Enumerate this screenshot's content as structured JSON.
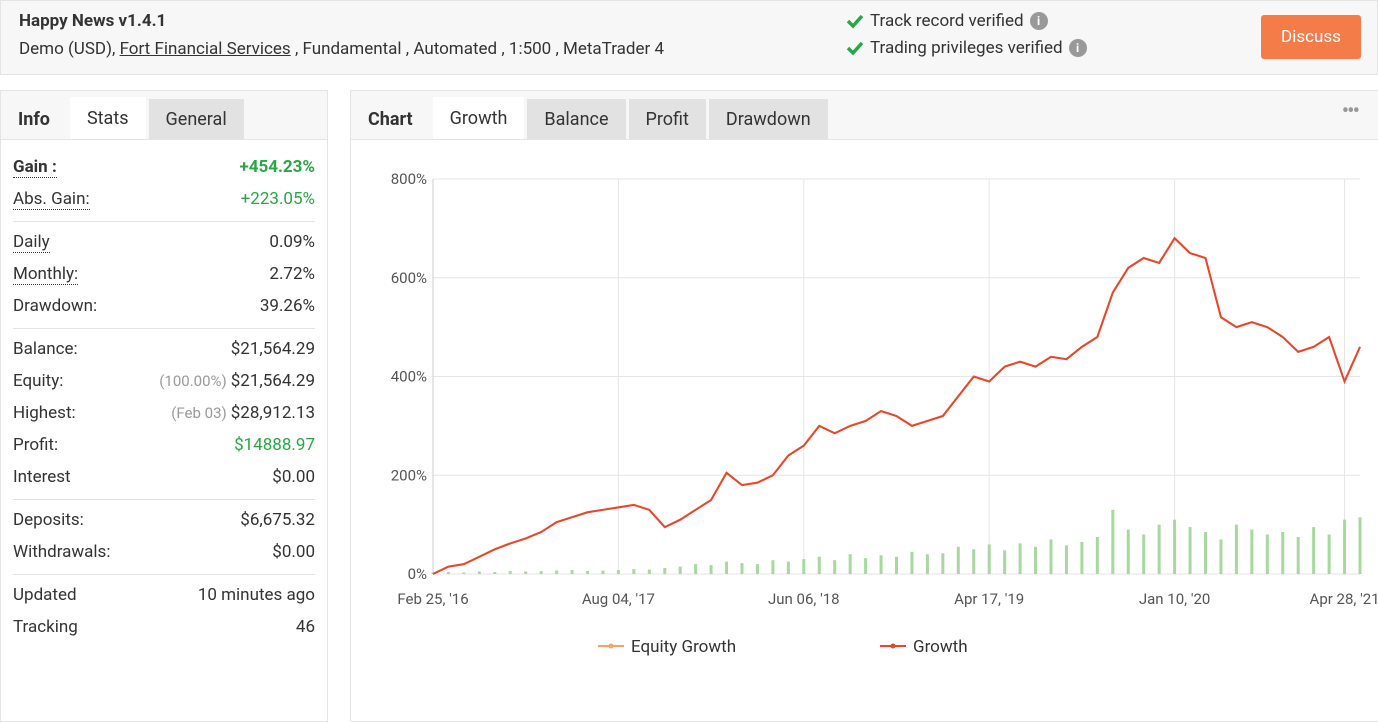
{
  "header": {
    "title": "Happy News v1.4.1",
    "account": "Demo (USD),",
    "broker": "Fort Financial Services",
    "details": ", Fundamental , Automated , 1:500 , MetaTrader 4",
    "verifications": [
      "Track record verified",
      "Trading privileges verified"
    ],
    "button": "Discuss"
  },
  "left_tabs": [
    "Info",
    "Stats",
    "General"
  ],
  "stats": [
    [
      {
        "label": "Gain :",
        "value": "+454.23%"
      },
      {
        "label": "Abs. Gain:",
        "value": "+223.05%"
      }
    ],
    [
      {
        "label": "Daily",
        "value": "0.09%"
      },
      {
        "label": "Monthly:",
        "value": "2.72%"
      },
      {
        "label": "Drawdown:",
        "value": "39.26%"
      }
    ],
    [
      {
        "label": "Balance:",
        "value": "$21,564.29"
      },
      {
        "label": "Equity:",
        "note": "(100.00%)",
        "value": "$21,564.29"
      },
      {
        "label": "Highest:",
        "note": "(Feb 03)",
        "value": "$28,912.13"
      },
      {
        "label": "Profit:",
        "value": "$14888.97"
      },
      {
        "label": "Interest",
        "value": "$0.00"
      }
    ],
    [
      {
        "label": "Deposits:",
        "value": "$6,675.32"
      },
      {
        "label": "Withdrawals:",
        "value": "$0.00"
      }
    ],
    [
      {
        "label": "Updated",
        "value": "10 minutes ago"
      },
      {
        "label": "Tracking",
        "value": "46"
      }
    ]
  ],
  "chart_tabs": [
    "Chart",
    "Growth",
    "Balance",
    "Profit",
    "Drawdown"
  ],
  "chart_data": {
    "type": "line",
    "categories": [
      "Feb 25, '16",
      null,
      null,
      null,
      null,
      null,
      null,
      null,
      null,
      null,
      null,
      null,
      "Aug 04, '17",
      null,
      null,
      null,
      null,
      null,
      null,
      null,
      null,
      null,
      null,
      null,
      "Jun 06, '18",
      null,
      null,
      null,
      null,
      null,
      null,
      null,
      null,
      null,
      null,
      null,
      "Apr 17, '19",
      null,
      null,
      null,
      null,
      null,
      null,
      null,
      null,
      null,
      null,
      null,
      "Jan 10, '20",
      null,
      null,
      null,
      null,
      null,
      null,
      null,
      null,
      null,
      null,
      "Apr 28, '21",
      null
    ],
    "series": [
      {
        "name": "Equity Growth",
        "color": "#f7a35c",
        "values": [
          0,
          15,
          20,
          35,
          50,
          62,
          72,
          85,
          105,
          115,
          125,
          130,
          135,
          140,
          130,
          95,
          110,
          130,
          150,
          205,
          180,
          185,
          200,
          240,
          260,
          300,
          285,
          300,
          310,
          330,
          320,
          300,
          310,
          320,
          360,
          400,
          390,
          420,
          430,
          420,
          440,
          435,
          460,
          480,
          570,
          620,
          640,
          630,
          680,
          650,
          640,
          520,
          500,
          510,
          500,
          480,
          450,
          460,
          480,
          390,
          460
        ]
      },
      {
        "name": "Growth",
        "color": "#e8472b",
        "values": [
          0,
          15,
          20,
          35,
          50,
          62,
          72,
          85,
          105,
          115,
          125,
          130,
          135,
          140,
          130,
          95,
          110,
          130,
          150,
          205,
          180,
          185,
          200,
          240,
          260,
          300,
          285,
          300,
          310,
          330,
          320,
          300,
          310,
          320,
          360,
          400,
          390,
          420,
          430,
          420,
          440,
          435,
          460,
          480,
          570,
          620,
          640,
          630,
          680,
          650,
          640,
          520,
          500,
          510,
          500,
          480,
          450,
          460,
          480,
          390,
          460
        ]
      }
    ],
    "bars": {
      "color": "#a8d8a0",
      "values": [
        3,
        4,
        3,
        5,
        4,
        6,
        5,
        6,
        7,
        8,
        6,
        7,
        8,
        10,
        9,
        12,
        15,
        20,
        18,
        25,
        22,
        20,
        28,
        25,
        30,
        35,
        28,
        40,
        32,
        38,
        35,
        45,
        40,
        42,
        55,
        50,
        60,
        48,
        62,
        55,
        70,
        58,
        65,
        75,
        130,
        90,
        80,
        100,
        110,
        95,
        85,
        70,
        100,
        90,
        80,
        85,
        75,
        95,
        80,
        110,
        115
      ]
    },
    "ylim": [
      0,
      800
    ],
    "yticks": [
      {
        "value": 0,
        "label": "0%"
      },
      {
        "value": 200,
        "label": "200%"
      },
      {
        "value": 400,
        "label": "400%"
      },
      {
        "value": 600,
        "label": "600%"
      },
      {
        "value": 800,
        "label": "800%"
      }
    ],
    "grid": true,
    "legend": "bottom"
  }
}
